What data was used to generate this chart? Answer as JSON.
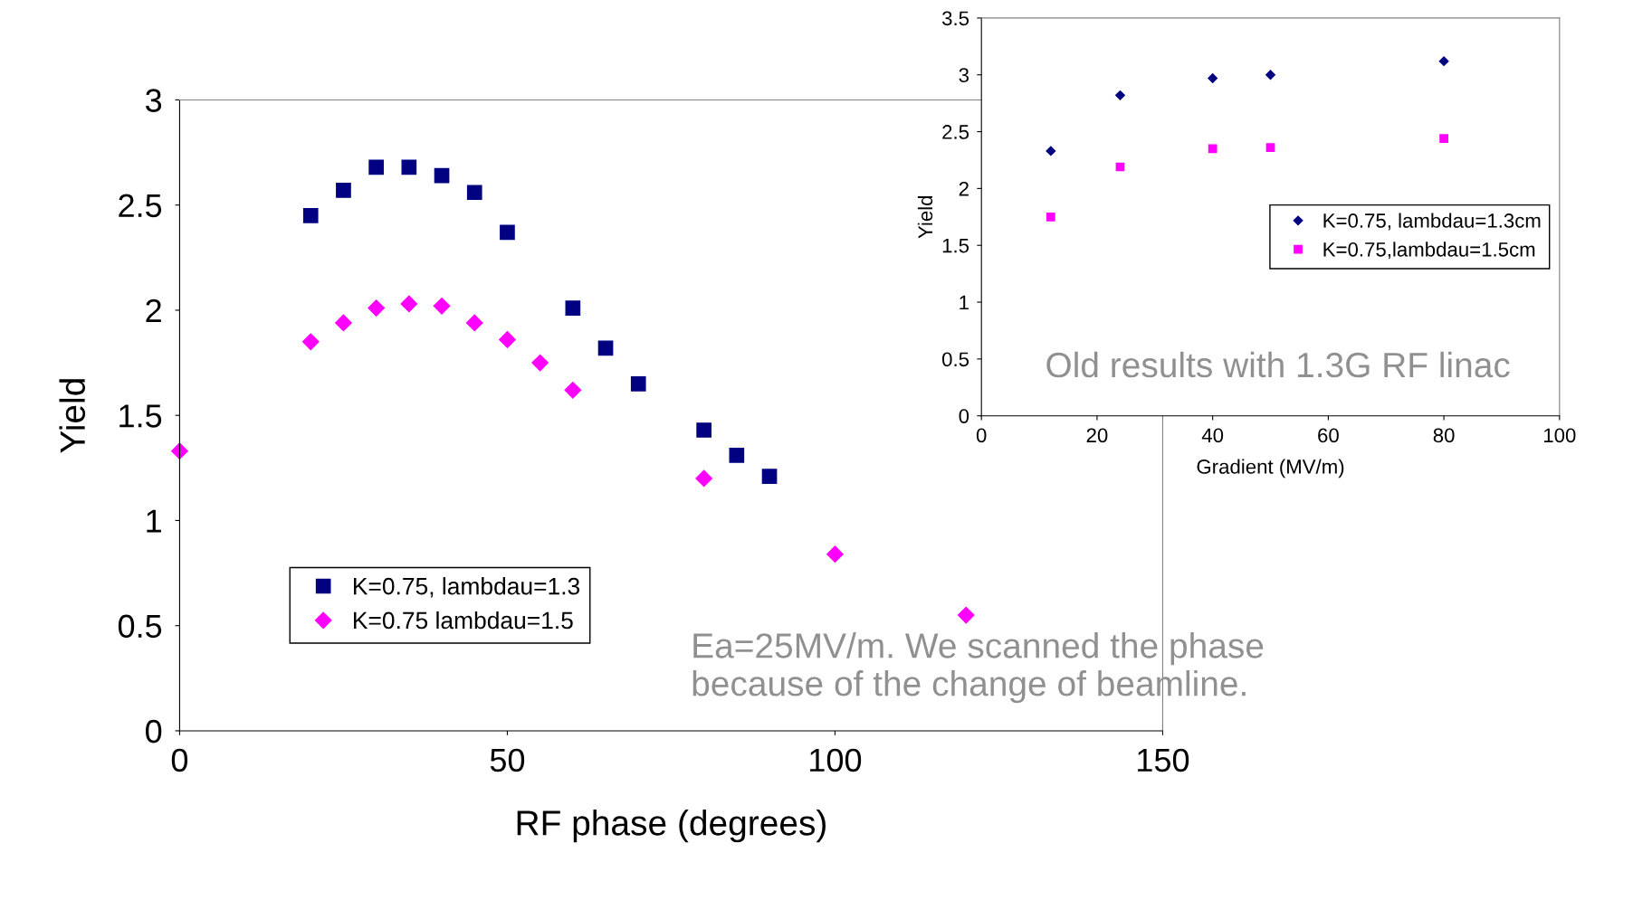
{
  "chart_data": [
    {
      "type": "scatter",
      "xlabel": "RF phase (degrees)",
      "ylabel": "Yield",
      "xlim": [
        0,
        150
      ],
      "xticks": [
        0,
        50,
        100,
        150
      ],
      "ylim": [
        0,
        3
      ],
      "yticks": [
        0,
        0.5,
        1,
        1.5,
        2,
        2.5,
        3
      ],
      "grid": false,
      "legend": "bottom left",
      "series": [
        {
          "name": "K=0.75, lambdau=1.3",
          "color": "#000080",
          "marker": "square",
          "x": [
            20,
            25,
            30,
            35,
            40,
            45,
            50,
            60,
            65,
            70,
            80,
            85,
            90
          ],
          "values": [
            2.45,
            2.57,
            2.68,
            2.68,
            2.64,
            2.56,
            2.37,
            2.01,
            1.82,
            1.65,
            1.43,
            1.31,
            1.21
          ]
        },
        {
          "name": "K=0.75 lambdau=1.5",
          "color": "#ff00ff",
          "marker": "diamond",
          "x": [
            0,
            20,
            25,
            30,
            35,
            40,
            45,
            50,
            55,
            60,
            80,
            100,
            120
          ],
          "values": [
            1.33,
            1.85,
            1.94,
            2.01,
            2.03,
            2.02,
            1.94,
            1.86,
            1.75,
            1.62,
            1.2,
            0.84,
            0.55
          ]
        }
      ],
      "annotations": [
        "Ea=25MV/m. We scanned the phase\nbecause of the change of beamline."
      ]
    },
    {
      "type": "scatter",
      "xlabel": "Gradient (MV/m)",
      "ylabel": "Yield",
      "xlim": [
        0,
        100
      ],
      "xticks": [
        0,
        20,
        40,
        60,
        80,
        100
      ],
      "ylim": [
        0,
        3.5
      ],
      "yticks": [
        0,
        0.5,
        1,
        1.5,
        2,
        2.5,
        3,
        3.5
      ],
      "grid": false,
      "legend": "right",
      "series": [
        {
          "name": "K=0.75, lambdau=1.3cm",
          "color": "#000080",
          "marker": "diamond",
          "x": [
            12,
            24,
            40,
            50,
            80
          ],
          "values": [
            2.33,
            2.82,
            2.97,
            3.0,
            3.12
          ]
        },
        {
          "name": "K=0.75,lambdau=1.5cm",
          "color": "#ff00ff",
          "marker": "square",
          "x": [
            12,
            24,
            40,
            50,
            80
          ],
          "values": [
            1.75,
            2.19,
            2.35,
            2.36,
            2.44
          ]
        }
      ],
      "annotations": [
        "Old results with 1.3G RF linac"
      ]
    }
  ]
}
